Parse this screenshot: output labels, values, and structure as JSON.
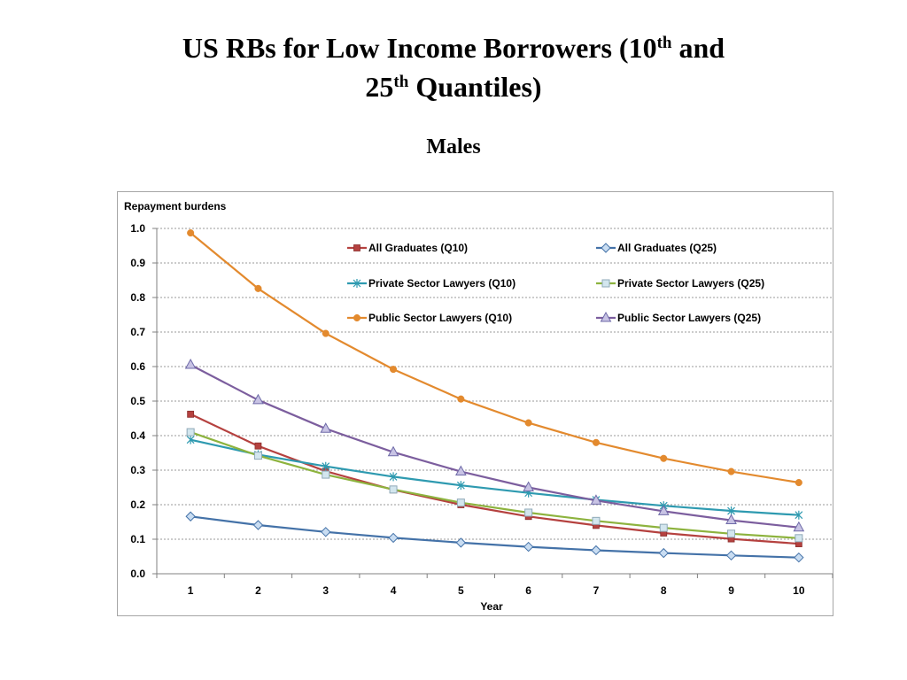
{
  "slide": {
    "title_part1": "US RBs for Low Income Borrowers (10",
    "title_sup1": "th",
    "title_part2": " and",
    "title_part3": "25",
    "title_sup2": "th",
    "title_part4": " Quantiles)",
    "subtitle": "Males"
  },
  "chart_data": {
    "type": "line",
    "ylabel": "Repayment burdens",
    "xlabel": "Year",
    "x": [
      1,
      2,
      3,
      4,
      5,
      6,
      7,
      8,
      9,
      10
    ],
    "ylim": [
      0,
      1
    ],
    "yticks": [
      "0.0",
      "0.1",
      "0.2",
      "0.3",
      "0.4",
      "0.5",
      "0.6",
      "0.7",
      "0.8",
      "0.9",
      "1.0"
    ],
    "grid": true,
    "legend_position": "top-right",
    "series": [
      {
        "name": "All Graduates (Q10)",
        "color": "#B5413F",
        "marker": "square",
        "values": [
          0.462,
          0.37,
          0.297,
          0.243,
          0.2,
          0.166,
          0.14,
          0.118,
          0.101,
          0.087
        ]
      },
      {
        "name": "All Graduates (Q25)",
        "color": "#4472A8",
        "marker": "diamond",
        "values": [
          0.166,
          0.141,
          0.121,
          0.104,
          0.09,
          0.078,
          0.068,
          0.06,
          0.053,
          0.047
        ]
      },
      {
        "name": "Private Sector Lawyers (Q10)",
        "color": "#2E9AB0",
        "marker": "star",
        "values": [
          0.388,
          0.345,
          0.311,
          0.281,
          0.256,
          0.234,
          0.214,
          0.197,
          0.182,
          0.17
        ]
      },
      {
        "name": "Private Sector Lawyers (Q25)",
        "color": "#8DB33E",
        "marker": "square-light",
        "values": [
          0.41,
          0.342,
          0.287,
          0.244,
          0.206,
          0.177,
          0.153,
          0.133,
          0.116,
          0.103
        ]
      },
      {
        "name": "Public Sector Lawyers (Q10)",
        "color": "#E38A2E",
        "marker": "circle",
        "values": [
          0.987,
          0.826,
          0.696,
          0.592,
          0.506,
          0.437,
          0.38,
          0.334,
          0.296,
          0.264
        ]
      },
      {
        "name": "Public Sector Lawyers (Q25)",
        "color": "#7C5E9E",
        "marker": "triangle",
        "values": [
          0.605,
          0.503,
          0.42,
          0.352,
          0.296,
          0.25,
          0.212,
          0.181,
          0.155,
          0.134
        ]
      }
    ]
  }
}
